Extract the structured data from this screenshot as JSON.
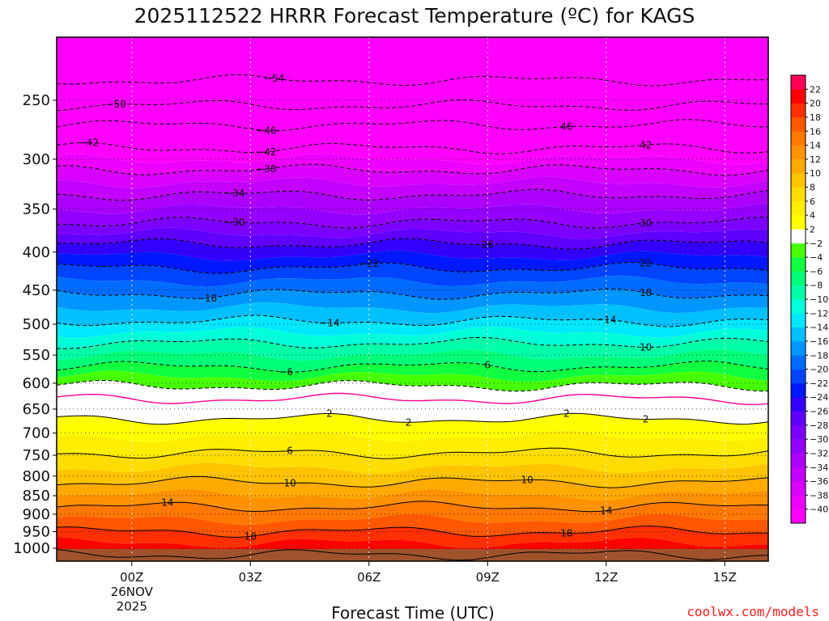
{
  "chart_data": {
    "type": "contour",
    "title": "2025112522 HRRR Forecast Temperature (ºC) for KAGS",
    "xlabel": "Forecast Time (UTC)",
    "ylabel": "",
    "x_axis_unit": "hours from 2025-11-26 00Z",
    "x_range": [
      -1.9,
      16.1
    ],
    "x_ticks": [
      {
        "x": 0,
        "label": "00Z",
        "sub": [
          "26NOV",
          "2025"
        ]
      },
      {
        "x": 3,
        "label": "03Z",
        "sub": []
      },
      {
        "x": 6,
        "label": "06Z",
        "sub": []
      },
      {
        "x": 9,
        "label": "09Z",
        "sub": []
      },
      {
        "x": 12,
        "label": "12Z",
        "sub": []
      },
      {
        "x": 15,
        "label": "15Z",
        "sub": []
      }
    ],
    "y_axis": {
      "unit": "hPa",
      "scale": "log",
      "reversed": true,
      "range": [
        200,
        1020
      ],
      "ticks": [
        250,
        300,
        350,
        400,
        450,
        500,
        550,
        600,
        650,
        700,
        750,
        800,
        850,
        900,
        950,
        1000
      ]
    },
    "colorbar": {
      "position": "right",
      "levels": [
        -40,
        -38,
        -36,
        -34,
        -32,
        -30,
        -28,
        -26,
        -24,
        -22,
        -20,
        -18,
        -16,
        -14,
        -12,
        -10,
        -8,
        -6,
        -4,
        -2,
        2,
        4,
        6,
        8,
        10,
        12,
        14,
        16,
        18,
        20,
        22
      ],
      "colors": [
        "#ff00ff",
        "#ee00ff",
        "#da00ff",
        "#c400ff",
        "#ac00ff",
        "#9400ff",
        "#7c00ff",
        "#6000ff",
        "#3300ff",
        "#0018ff",
        "#0044ff",
        "#006cff",
        "#0096ff",
        "#00c0ff",
        "#00e8ff",
        "#00ffd8",
        "#00ffa8",
        "#00ff78",
        "#10ff40",
        "#48ff00",
        "#ffffff",
        "#ffff00",
        "#ffee00",
        "#ffdd00",
        "#ffc400",
        "#ffaa00",
        "#ff9200",
        "#ff7800",
        "#ff5800",
        "#ff3000",
        "#ff0000",
        "#ff0058"
      ]
    },
    "grid": true,
    "isotherm_levels": [
      -54,
      -50,
      -46,
      -42,
      -38,
      -34,
      -30,
      -26,
      -22,
      -18,
      -14,
      -10,
      -6,
      -2,
      2,
      6,
      10,
      14,
      18,
      22
    ],
    "zero_isotherm_color": "#ff0090",
    "temperature_profile": [
      {
        "p": 200,
        "t": -58
      },
      {
        "p": 230,
        "t": -55
      },
      {
        "p": 250,
        "t": -51
      },
      {
        "p": 270,
        "t": -46
      },
      {
        "p": 290,
        "t": -42
      },
      {
        "p": 310,
        "t": -38
      },
      {
        "p": 335,
        "t": -34
      },
      {
        "p": 365,
        "t": -30
      },
      {
        "p": 390,
        "t": -26
      },
      {
        "p": 420,
        "t": -22
      },
      {
        "p": 455,
        "t": -18
      },
      {
        "p": 495,
        "t": -14
      },
      {
        "p": 530,
        "t": -10
      },
      {
        "p": 570,
        "t": -6
      },
      {
        "p": 605,
        "t": -2
      },
      {
        "p": 630,
        "t": 0
      },
      {
        "p": 670,
        "t": 2
      },
      {
        "p": 745,
        "t": 6
      },
      {
        "p": 815,
        "t": 10
      },
      {
        "p": 880,
        "t": 14
      },
      {
        "p": 950,
        "t": 18
      },
      {
        "p": 1000,
        "t": 21
      },
      {
        "p": 1020,
        "t": 22
      }
    ],
    "contour_labels": [
      {
        "x": 3.6,
        "value": -54,
        "text": "−54"
      },
      {
        "x": -0.4,
        "value": -50,
        "text": "−50"
      },
      {
        "x": 3.4,
        "value": -46,
        "text": "−46"
      },
      {
        "x": 11.0,
        "value": -46,
        "text": "46"
      },
      {
        "x": -1.1,
        "value": -42,
        "text": "−42"
      },
      {
        "x": 3.4,
        "value": -42,
        "text": "−42"
      },
      {
        "x": 13.0,
        "value": -42,
        "text": "42"
      },
      {
        "x": 3.4,
        "value": -38,
        "text": "−38"
      },
      {
        "x": 2.6,
        "value": -34,
        "text": "−34"
      },
      {
        "x": 2.6,
        "value": -30,
        "text": "−30"
      },
      {
        "x": 13.0,
        "value": -30,
        "text": "30"
      },
      {
        "x": 9.0,
        "value": -26,
        "text": "26"
      },
      {
        "x": 6.0,
        "value": -22,
        "text": "−22"
      },
      {
        "x": 13.0,
        "value": -22,
        "text": "22"
      },
      {
        "x": 1.9,
        "value": -18,
        "text": "−18"
      },
      {
        "x": 13.0,
        "value": -18,
        "text": "18"
      },
      {
        "x": 5.0,
        "value": -14,
        "text": "−14"
      },
      {
        "x": 12.0,
        "value": -14,
        "text": "−14"
      },
      {
        "x": 13.0,
        "value": -10,
        "text": "10"
      },
      {
        "x": 3.9,
        "value": -6,
        "text": "−6"
      },
      {
        "x": 9.0,
        "value": -6,
        "text": "6"
      },
      {
        "x": 5.0,
        "value": 2,
        "text": "2"
      },
      {
        "x": 11.0,
        "value": 2,
        "text": "2"
      },
      {
        "x": 7.0,
        "value": 2,
        "text": "2"
      },
      {
        "x": 13.0,
        "value": 2,
        "text": "2"
      },
      {
        "x": 4.0,
        "value": 6,
        "text": "6"
      },
      {
        "x": 4.0,
        "value": 10,
        "text": "10"
      },
      {
        "x": 10.0,
        "value": 10,
        "text": "10"
      },
      {
        "x": 0.9,
        "value": 14,
        "text": "14"
      },
      {
        "x": 12.0,
        "value": 14,
        "text": "14"
      },
      {
        "x": 3.0,
        "value": 18,
        "text": "18"
      },
      {
        "x": 11.0,
        "value": 18,
        "text": "18"
      }
    ]
  },
  "credit": "coolwx.com/models"
}
